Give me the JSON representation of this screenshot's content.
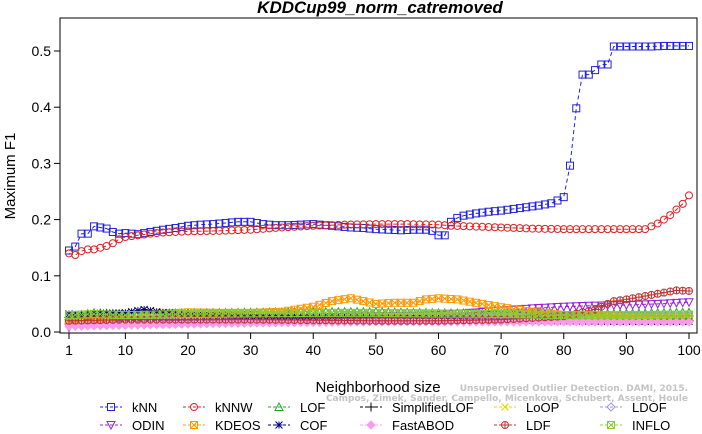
{
  "chart_data": {
    "type": "line",
    "title": "KDDCup99_norm_catremoved",
    "xlabel": "Neighborhood size",
    "ylabel": "Maximum F1",
    "xlim": [
      1,
      100
    ],
    "ylim": [
      0,
      0.55
    ],
    "xticks": [
      1,
      10,
      20,
      30,
      40,
      50,
      60,
      70,
      80,
      90,
      100
    ],
    "yticks": [
      0.0,
      0.1,
      0.2,
      0.3,
      0.4,
      0.5
    ],
    "grid": false,
    "legend_position": "bottom",
    "series": [
      {
        "name": "kNN",
        "color": "#2222dd",
        "marker": "square",
        "points": [
          [
            1,
            0.145
          ],
          [
            2,
            0.152
          ],
          [
            3,
            0.175
          ],
          [
            4,
            0.175
          ],
          [
            5,
            0.188
          ],
          [
            6,
            0.186
          ],
          [
            7,
            0.184
          ],
          [
            8,
            0.178
          ],
          [
            9,
            0.175
          ],
          [
            10,
            0.176
          ],
          [
            12,
            0.174
          ],
          [
            14,
            0.178
          ],
          [
            16,
            0.182
          ],
          [
            18,
            0.185
          ],
          [
            20,
            0.189
          ],
          [
            22,
            0.191
          ],
          [
            24,
            0.192
          ],
          [
            26,
            0.194
          ],
          [
            28,
            0.196
          ],
          [
            30,
            0.196
          ],
          [
            32,
            0.192
          ],
          [
            34,
            0.19
          ],
          [
            36,
            0.19
          ],
          [
            38,
            0.191
          ],
          [
            40,
            0.192
          ],
          [
            42,
            0.19
          ],
          [
            44,
            0.188
          ],
          [
            46,
            0.186
          ],
          [
            48,
            0.185
          ],
          [
            50,
            0.183
          ],
          [
            52,
            0.182
          ],
          [
            54,
            0.181
          ],
          [
            56,
            0.182
          ],
          [
            58,
            0.182
          ],
          [
            59,
            0.18
          ],
          [
            60,
            0.172
          ],
          [
            61,
            0.172
          ],
          [
            62,
            0.196
          ],
          [
            63,
            0.203
          ],
          [
            64,
            0.207
          ],
          [
            66,
            0.211
          ],
          [
            68,
            0.214
          ],
          [
            70,
            0.216
          ],
          [
            72,
            0.219
          ],
          [
            74,
            0.222
          ],
          [
            76,
            0.225
          ],
          [
            78,
            0.229
          ],
          [
            79,
            0.234
          ],
          [
            80,
            0.24
          ],
          [
            81,
            0.296
          ],
          [
            82,
            0.398
          ],
          [
            83,
            0.458
          ],
          [
            84,
            0.458
          ],
          [
            85,
            0.466
          ],
          [
            86,
            0.476
          ],
          [
            87,
            0.476
          ],
          [
            88,
            0.508
          ],
          [
            90,
            0.508
          ],
          [
            92,
            0.508
          ],
          [
            94,
            0.508
          ],
          [
            96,
            0.509
          ],
          [
            98,
            0.509
          ],
          [
            100,
            0.509
          ]
        ]
      },
      {
        "name": "kNNW",
        "color": "#dd2222",
        "marker": "circle",
        "points": [
          [
            1,
            0.14
          ],
          [
            2,
            0.137
          ],
          [
            3,
            0.144
          ],
          [
            4,
            0.147
          ],
          [
            5,
            0.147
          ],
          [
            6,
            0.15
          ],
          [
            7,
            0.153
          ],
          [
            8,
            0.158
          ],
          [
            9,
            0.165
          ],
          [
            10,
            0.169
          ],
          [
            12,
            0.172
          ],
          [
            14,
            0.175
          ],
          [
            16,
            0.177
          ],
          [
            18,
            0.178
          ],
          [
            20,
            0.179
          ],
          [
            25,
            0.18
          ],
          [
            30,
            0.182
          ],
          [
            35,
            0.186
          ],
          [
            40,
            0.189
          ],
          [
            45,
            0.191
          ],
          [
            50,
            0.192
          ],
          [
            55,
            0.192
          ],
          [
            60,
            0.191
          ],
          [
            62,
            0.189
          ],
          [
            65,
            0.188
          ],
          [
            70,
            0.186
          ],
          [
            75,
            0.184
          ],
          [
            80,
            0.183
          ],
          [
            85,
            0.183
          ],
          [
            90,
            0.183
          ],
          [
            93,
            0.183
          ],
          [
            94,
            0.188
          ],
          [
            95,
            0.193
          ],
          [
            96,
            0.2
          ],
          [
            97,
            0.208
          ],
          [
            98,
            0.218
          ],
          [
            99,
            0.228
          ],
          [
            100,
            0.243
          ]
        ]
      },
      {
        "name": "LOF",
        "color": "#22aa22",
        "marker": "triangle-up",
        "points": [
          [
            1,
            0.028
          ],
          [
            5,
            0.034
          ],
          [
            10,
            0.032
          ],
          [
            20,
            0.034
          ],
          [
            30,
            0.035
          ],
          [
            40,
            0.036
          ],
          [
            50,
            0.036
          ],
          [
            60,
            0.034
          ],
          [
            70,
            0.033
          ],
          [
            80,
            0.032
          ],
          [
            90,
            0.033
          ],
          [
            100,
            0.035
          ]
        ]
      },
      {
        "name": "SimplifiedLOF",
        "color": "#000000",
        "marker": "plus",
        "points": [
          [
            1,
            0.026
          ],
          [
            5,
            0.029
          ],
          [
            10,
            0.028
          ],
          [
            20,
            0.028
          ],
          [
            30,
            0.029
          ],
          [
            40,
            0.028
          ],
          [
            50,
            0.027
          ],
          [
            60,
            0.026
          ],
          [
            70,
            0.025
          ],
          [
            80,
            0.024
          ],
          [
            90,
            0.022
          ],
          [
            100,
            0.02
          ]
        ]
      },
      {
        "name": "LoOP",
        "color": "#dddd00",
        "marker": "cross",
        "points": [
          [
            1,
            0.02
          ],
          [
            5,
            0.022
          ],
          [
            10,
            0.024
          ],
          [
            20,
            0.026
          ],
          [
            30,
            0.027
          ],
          [
            40,
            0.028
          ],
          [
            50,
            0.03
          ],
          [
            60,
            0.03
          ],
          [
            70,
            0.029
          ],
          [
            80,
            0.028
          ],
          [
            90,
            0.027
          ],
          [
            100,
            0.026
          ]
        ]
      },
      {
        "name": "LDOF",
        "color": "#9999dd",
        "marker": "diamond",
        "points": [
          [
            1,
            0.018
          ],
          [
            5,
            0.02
          ],
          [
            10,
            0.022
          ],
          [
            20,
            0.024
          ],
          [
            30,
            0.025
          ],
          [
            40,
            0.026
          ],
          [
            50,
            0.027
          ],
          [
            60,
            0.028
          ],
          [
            70,
            0.028
          ],
          [
            80,
            0.028
          ],
          [
            90,
            0.028
          ],
          [
            100,
            0.028
          ]
        ]
      },
      {
        "name": "ODIN",
        "color": "#9922dd",
        "marker": "triangle-down",
        "points": [
          [
            1,
            0.008
          ],
          [
            3,
            0.014
          ],
          [
            5,
            0.018
          ],
          [
            10,
            0.02
          ],
          [
            20,
            0.022
          ],
          [
            30,
            0.024
          ],
          [
            40,
            0.026
          ],
          [
            50,
            0.028
          ],
          [
            60,
            0.03
          ],
          [
            65,
            0.034
          ],
          [
            70,
            0.038
          ],
          [
            75,
            0.042
          ],
          [
            80,
            0.045
          ],
          [
            85,
            0.047
          ],
          [
            90,
            0.048
          ],
          [
            95,
            0.05
          ],
          [
            100,
            0.053
          ]
        ]
      },
      {
        "name": "KDEOS",
        "color": "#ff9900",
        "marker": "square-x",
        "points": [
          [
            1,
            0.016
          ],
          [
            5,
            0.018
          ],
          [
            10,
            0.03
          ],
          [
            15,
            0.032
          ],
          [
            20,
            0.035
          ],
          [
            25,
            0.034
          ],
          [
            30,
            0.034
          ],
          [
            35,
            0.036
          ],
          [
            40,
            0.045
          ],
          [
            43,
            0.055
          ],
          [
            46,
            0.06
          ],
          [
            48,
            0.055
          ],
          [
            50,
            0.05
          ],
          [
            53,
            0.052
          ],
          [
            56,
            0.052
          ],
          [
            58,
            0.058
          ],
          [
            60,
            0.06
          ],
          [
            63,
            0.058
          ],
          [
            66,
            0.052
          ],
          [
            70,
            0.044
          ],
          [
            75,
            0.036
          ],
          [
            80,
            0.03
          ],
          [
            90,
            0.027
          ],
          [
            100,
            0.026
          ]
        ]
      },
      {
        "name": "COF",
        "color": "#000080",
        "marker": "asterisk",
        "points": [
          [
            1,
            0.032
          ],
          [
            3,
            0.03
          ],
          [
            5,
            0.033
          ],
          [
            10,
            0.034
          ],
          [
            13,
            0.04
          ],
          [
            15,
            0.036
          ],
          [
            20,
            0.03
          ],
          [
            30,
            0.028
          ],
          [
            40,
            0.026
          ],
          [
            50,
            0.025
          ],
          [
            60,
            0.024
          ],
          [
            70,
            0.022
          ],
          [
            80,
            0.02
          ],
          [
            90,
            0.019
          ],
          [
            100,
            0.019
          ]
        ]
      },
      {
        "name": "FastABOD",
        "color": "#ff99ee",
        "marker": "diamond-filled",
        "points": [
          [
            1,
            0.01
          ],
          [
            10,
            0.012
          ],
          [
            20,
            0.014
          ],
          [
            30,
            0.016
          ],
          [
            40,
            0.017
          ],
          [
            50,
            0.018
          ],
          [
            60,
            0.018
          ],
          [
            70,
            0.018
          ],
          [
            80,
            0.018
          ],
          [
            90,
            0.018
          ],
          [
            100,
            0.018
          ]
        ]
      },
      {
        "name": "LDF",
        "color": "#bb3333",
        "marker": "circle-plus",
        "points": [
          [
            1,
            0.02
          ],
          [
            10,
            0.022
          ],
          [
            20,
            0.022
          ],
          [
            30,
            0.022
          ],
          [
            40,
            0.021
          ],
          [
            50,
            0.02
          ],
          [
            60,
            0.02
          ],
          [
            70,
            0.022
          ],
          [
            80,
            0.028
          ],
          [
            85,
            0.04
          ],
          [
            88,
            0.055
          ],
          [
            90,
            0.058
          ],
          [
            92,
            0.062
          ],
          [
            95,
            0.068
          ],
          [
            98,
            0.074
          ],
          [
            100,
            0.073
          ]
        ]
      },
      {
        "name": "INFLO",
        "color": "#88cc33",
        "marker": "square-x",
        "points": [
          [
            1,
            0.03
          ],
          [
            5,
            0.032
          ],
          [
            10,
            0.03
          ],
          [
            20,
            0.032
          ],
          [
            30,
            0.033
          ],
          [
            40,
            0.034
          ],
          [
            50,
            0.034
          ],
          [
            60,
            0.033
          ],
          [
            70,
            0.032
          ],
          [
            80,
            0.03
          ],
          [
            90,
            0.03
          ],
          [
            100,
            0.031
          ]
        ]
      }
    ]
  },
  "credit_line1": "Unsupervised Outlier Detection. DAMI, 2015.",
  "credit_line2": "Campos, Zimek, Sander, Campello, Micenkova, Schubert, Assent, Houle"
}
